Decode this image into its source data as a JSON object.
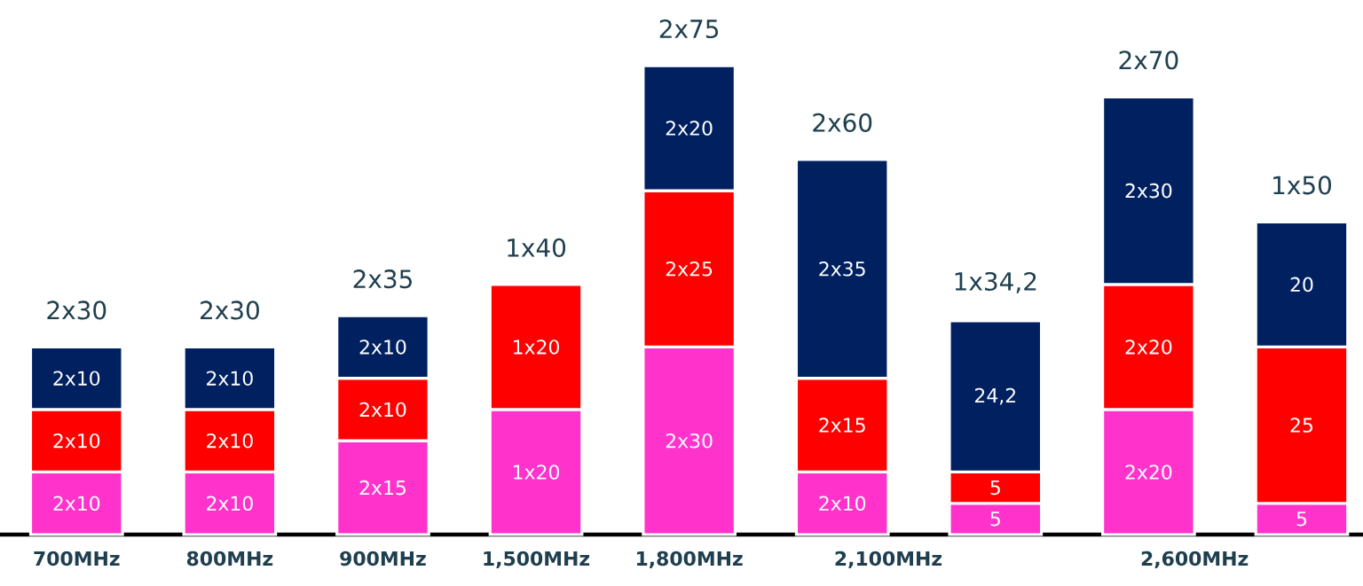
{
  "chart_data": {
    "type": "bar",
    "stacked": true,
    "categories": [
      "700MHz",
      "800MHz",
      "900MHz",
      "1,500MHz",
      "1,800MHz",
      "2,100MHz",
      null,
      "2,600MHz",
      null
    ],
    "series": [
      {
        "color": "#ff33cc",
        "values": [
          10,
          10,
          15,
          20,
          30,
          10,
          5,
          20,
          5
        ],
        "value_labels": [
          "2x10",
          "2x10",
          "2x15",
          "1x20",
          "2x30",
          "2x10",
          "5",
          "2x20",
          "5"
        ]
      },
      {
        "color": "#ff0000",
        "values": [
          10,
          10,
          10,
          20,
          25,
          15,
          5,
          20,
          25
        ],
        "value_labels": [
          "2x10",
          "2x10",
          "2x10",
          "1x20",
          "2x25",
          "2x15",
          "5",
          "2x20",
          "25"
        ]
      },
      {
        "color": "#002060",
        "values": [
          10,
          10,
          10,
          null,
          20,
          35,
          24.2,
          30,
          20
        ],
        "value_labels": [
          "2x10",
          "2x10",
          "2x10",
          null,
          "2x20",
          "2x35",
          "24,2",
          "2x30",
          "20"
        ]
      }
    ],
    "totals": [
      "2x30",
      "2x30",
      "2x35",
      "1x40",
      "2x75",
      "2x60",
      "1x34,2",
      "2x70",
      "1x50"
    ]
  }
}
